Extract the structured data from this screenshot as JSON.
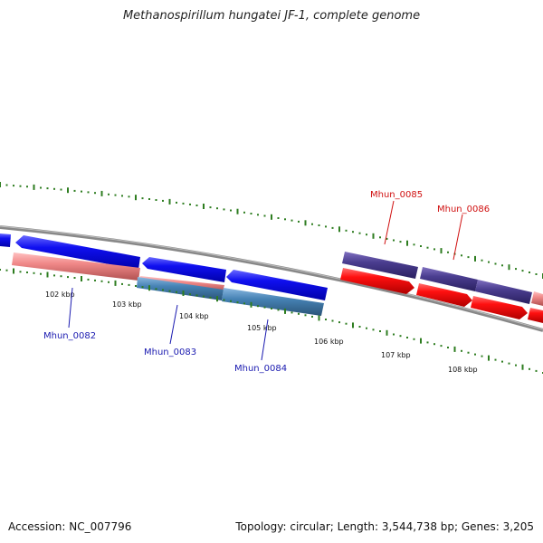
{
  "title": "Methanospirillum hungatei JF-1, complete genome",
  "footer": {
    "accession": "Accession: NC_007796",
    "topology": "Topology: circular; Length: 3,544,738 bp; Genes: 3,205"
  },
  "scale_labels": [
    "102 kbp",
    "103 kbp",
    "104 kbp",
    "105 kbp",
    "106 kbp",
    "107 kbp",
    "108 kbp"
  ],
  "genes": [
    {
      "name": "Mhun_0082",
      "color": "#1a1ab0"
    },
    {
      "name": "Mhun_0083",
      "color": "#1a1ab0"
    },
    {
      "name": "Mhun_0084",
      "color": "#1a1ab0"
    },
    {
      "name": "Mhun_0085",
      "color": "#d01010"
    },
    {
      "name": "Mhun_0086",
      "color": "#d01010"
    }
  ],
  "colors": {
    "backbone": "#808080",
    "tick": "#2e7d20",
    "cds_forward": "#ff0000",
    "cds_reverse": "#0000ff",
    "gene_forward": "#f08888",
    "gene_reverse": "#4682b4",
    "gene_purple": "#4a3d8f"
  }
}
